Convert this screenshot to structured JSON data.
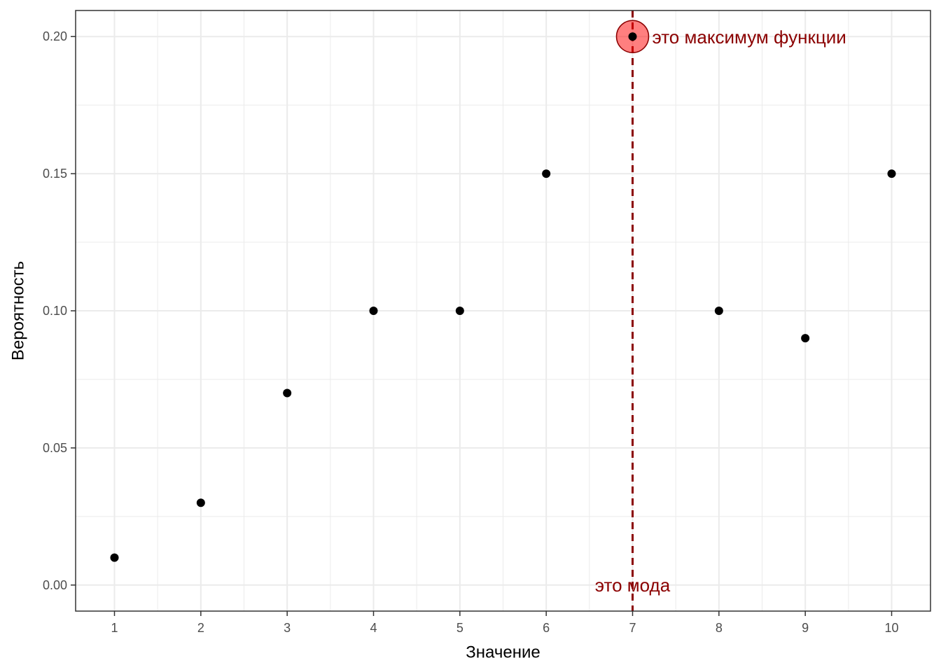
{
  "chart_data": {
    "type": "scatter",
    "title": "",
    "xlabel": "Значение",
    "ylabel": "Вероятность",
    "x": [
      1,
      2,
      3,
      4,
      5,
      6,
      7,
      8,
      9,
      10
    ],
    "y": [
      0.01,
      0.03,
      0.07,
      0.1,
      0.1,
      0.15,
      0.2,
      0.1,
      0.09,
      0.15
    ],
    "xlim": [
      0.55,
      10.45
    ],
    "ylim": [
      -0.0095,
      0.2095
    ],
    "x_ticks": [
      1,
      2,
      3,
      4,
      5,
      6,
      7,
      8,
      9,
      10
    ],
    "y_ticks": [
      0.0,
      0.05,
      0.1,
      0.15,
      0.2
    ],
    "y_tick_labels": [
      "0.00",
      "0.05",
      "0.10",
      "0.15",
      "0.20"
    ],
    "grid": true,
    "point_color": "#000000",
    "mode": {
      "x": 7,
      "label": "это мода",
      "label_y": 0.0,
      "line_style": "dashed",
      "color": "#8b0000"
    },
    "max_point": {
      "x": 7,
      "y": 0.2,
      "label": "это максимум функции",
      "highlight_color": "#ff0000",
      "label_color": "#8b0000"
    }
  }
}
